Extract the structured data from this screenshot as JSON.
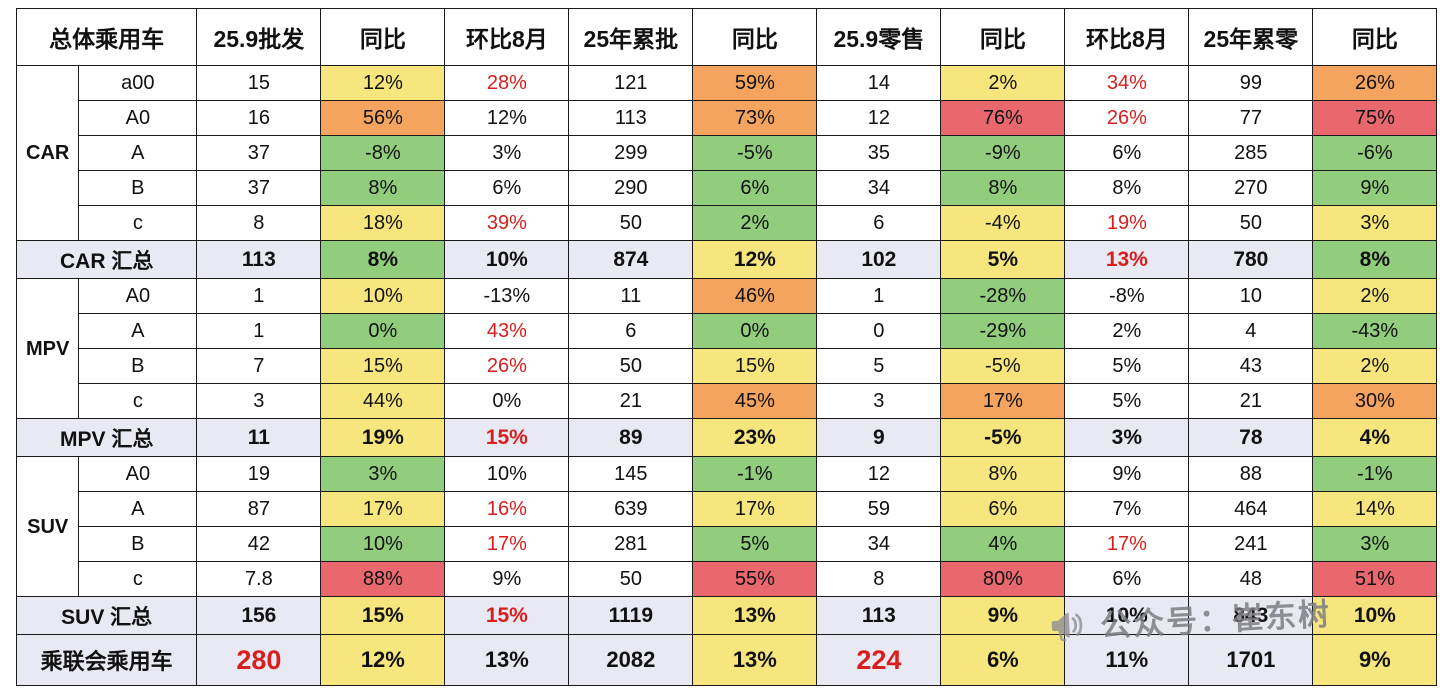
{
  "colors": {
    "w": "#ffffff",
    "y": "#f6e67d",
    "g": "#92cd7d",
    "o": "#f4a45e",
    "r": "#e9686e",
    "t": "#e8e9f3",
    "red_text": "#d81e1e"
  },
  "chart_data": {
    "type": "table",
    "title": "总体乘用车",
    "columns": [
      "总体乘用车",
      "25.9批发",
      "同比",
      "环比8月",
      "25年累批",
      "同比",
      "25.9零售",
      "同比",
      "环比8月",
      "25年累零",
      "同比"
    ],
    "sections": [
      {
        "group": "CAR",
        "rows": [
          {
            "label": "a00",
            "cells": [
              [
                "15",
                "w"
              ],
              [
                "12%",
                "y"
              ],
              [
                "28%",
                "w",
                "red"
              ],
              [
                "121",
                "w"
              ],
              [
                "59%",
                "o"
              ],
              [
                "14",
                "w"
              ],
              [
                "2%",
                "y"
              ],
              [
                "34%",
                "w",
                "red"
              ],
              [
                "99",
                "w"
              ],
              [
                "26%",
                "o"
              ]
            ]
          },
          {
            "label": "A0",
            "cells": [
              [
                "16",
                "w"
              ],
              [
                "56%",
                "o"
              ],
              [
                "12%",
                "w"
              ],
              [
                "113",
                "w"
              ],
              [
                "73%",
                "o"
              ],
              [
                "12",
                "w"
              ],
              [
                "76%",
                "r"
              ],
              [
                "26%",
                "w",
                "red"
              ],
              [
                "77",
                "w"
              ],
              [
                "75%",
                "r"
              ]
            ]
          },
          {
            "label": "A",
            "cells": [
              [
                "37",
                "w"
              ],
              [
                "-8%",
                "g"
              ],
              [
                "3%",
                "w"
              ],
              [
                "299",
                "w"
              ],
              [
                "-5%",
                "g"
              ],
              [
                "35",
                "w"
              ],
              [
                "-9%",
                "g"
              ],
              [
                "6%",
                "w"
              ],
              [
                "285",
                "w"
              ],
              [
                "-6%",
                "g"
              ]
            ]
          },
          {
            "label": "B",
            "cells": [
              [
                "37",
                "w"
              ],
              [
                "8%",
                "g"
              ],
              [
                "6%",
                "w"
              ],
              [
                "290",
                "w"
              ],
              [
                "6%",
                "g"
              ],
              [
                "34",
                "w"
              ],
              [
                "8%",
                "g"
              ],
              [
                "8%",
                "w"
              ],
              [
                "270",
                "w"
              ],
              [
                "9%",
                "g"
              ]
            ]
          },
          {
            "label": "c",
            "cells": [
              [
                "8",
                "w"
              ],
              [
                "18%",
                "y"
              ],
              [
                "39%",
                "w",
                "red"
              ],
              [
                "50",
                "w"
              ],
              [
                "2%",
                "g"
              ],
              [
                "6",
                "w"
              ],
              [
                "-4%",
                "y"
              ],
              [
                "19%",
                "w",
                "red"
              ],
              [
                "50",
                "w"
              ],
              [
                "3%",
                "y"
              ]
            ]
          }
        ],
        "total": {
          "label": "CAR 汇总",
          "cells": [
            [
              "113",
              "t"
            ],
            [
              "8%",
              "g"
            ],
            [
              "10%",
              "t"
            ],
            [
              "874",
              "t"
            ],
            [
              "12%",
              "y"
            ],
            [
              "102",
              "t"
            ],
            [
              "5%",
              "y"
            ],
            [
              "13%",
              "t",
              "red"
            ],
            [
              "780",
              "t"
            ],
            [
              "8%",
              "g"
            ]
          ]
        }
      },
      {
        "group": "MPV",
        "rows": [
          {
            "label": "A0",
            "cells": [
              [
                "1",
                "w"
              ],
              [
                "10%",
                "y"
              ],
              [
                "-13%",
                "w"
              ],
              [
                "11",
                "w"
              ],
              [
                "46%",
                "o"
              ],
              [
                "1",
                "w"
              ],
              [
                "-28%",
                "g"
              ],
              [
                "-8%",
                "w"
              ],
              [
                "10",
                "w"
              ],
              [
                "2%",
                "y"
              ]
            ]
          },
          {
            "label": "A",
            "cells": [
              [
                "1",
                "w"
              ],
              [
                "0%",
                "g"
              ],
              [
                "43%",
                "w",
                "red"
              ],
              [
                "6",
                "w"
              ],
              [
                "0%",
                "g"
              ],
              [
                "0",
                "w"
              ],
              [
                "-29%",
                "g"
              ],
              [
                "2%",
                "w"
              ],
              [
                "4",
                "w"
              ],
              [
                "-43%",
                "g"
              ]
            ]
          },
          {
            "label": "B",
            "cells": [
              [
                "7",
                "w"
              ],
              [
                "15%",
                "y"
              ],
              [
                "26%",
                "w",
                "red"
              ],
              [
                "50",
                "w"
              ],
              [
                "15%",
                "y"
              ],
              [
                "5",
                "w"
              ],
              [
                "-5%",
                "y"
              ],
              [
                "5%",
                "w"
              ],
              [
                "43",
                "w"
              ],
              [
                "2%",
                "y"
              ]
            ]
          },
          {
            "label": "c",
            "cells": [
              [
                "3",
                "w"
              ],
              [
                "44%",
                "y"
              ],
              [
                "0%",
                "w"
              ],
              [
                "21",
                "w"
              ],
              [
                "45%",
                "o"
              ],
              [
                "3",
                "w"
              ],
              [
                "17%",
                "o"
              ],
              [
                "5%",
                "w"
              ],
              [
                "21",
                "w"
              ],
              [
                "30%",
                "o"
              ]
            ]
          }
        ],
        "total": {
          "label": "MPV 汇总",
          "cells": [
            [
              "11",
              "t"
            ],
            [
              "19%",
              "y"
            ],
            [
              "15%",
              "t",
              "red"
            ],
            [
              "89",
              "t"
            ],
            [
              "23%",
              "y"
            ],
            [
              "9",
              "t"
            ],
            [
              "-5%",
              "y"
            ],
            [
              "3%",
              "t"
            ],
            [
              "78",
              "t"
            ],
            [
              "4%",
              "y"
            ]
          ]
        }
      },
      {
        "group": "SUV",
        "rows": [
          {
            "label": "A0",
            "cells": [
              [
                "19",
                "w"
              ],
              [
                "3%",
                "g"
              ],
              [
                "10%",
                "w"
              ],
              [
                "145",
                "w"
              ],
              [
                "-1%",
                "g"
              ],
              [
                "12",
                "w"
              ],
              [
                "8%",
                "y"
              ],
              [
                "9%",
                "w"
              ],
              [
                "88",
                "w"
              ],
              [
                "-1%",
                "g"
              ]
            ]
          },
          {
            "label": "A",
            "cells": [
              [
                "87",
                "w"
              ],
              [
                "17%",
                "y"
              ],
              [
                "16%",
                "w",
                "red"
              ],
              [
                "639",
                "w"
              ],
              [
                "17%",
                "y"
              ],
              [
                "59",
                "w"
              ],
              [
                "6%",
                "y"
              ],
              [
                "7%",
                "w"
              ],
              [
                "464",
                "w"
              ],
              [
                "14%",
                "y"
              ]
            ]
          },
          {
            "label": "B",
            "cells": [
              [
                "42",
                "w"
              ],
              [
                "10%",
                "g"
              ],
              [
                "17%",
                "w",
                "red"
              ],
              [
                "281",
                "w"
              ],
              [
                "5%",
                "g"
              ],
              [
                "34",
                "w"
              ],
              [
                "4%",
                "g"
              ],
              [
                "17%",
                "w",
                "red"
              ],
              [
                "241",
                "w"
              ],
              [
                "3%",
                "g"
              ]
            ]
          },
          {
            "label": "c",
            "cells": [
              [
                "7.8",
                "w"
              ],
              [
                "88%",
                "r"
              ],
              [
                "9%",
                "w"
              ],
              [
                "50",
                "w"
              ],
              [
                "55%",
                "r"
              ],
              [
                "8",
                "w"
              ],
              [
                "80%",
                "r"
              ],
              [
                "6%",
                "w"
              ],
              [
                "48",
                "w"
              ],
              [
                "51%",
                "r"
              ]
            ]
          }
        ],
        "total": {
          "label": "SUV 汇总",
          "cells": [
            [
              "156",
              "t"
            ],
            [
              "15%",
              "y"
            ],
            [
              "15%",
              "t",
              "red"
            ],
            [
              "1119",
              "t"
            ],
            [
              "13%",
              "y"
            ],
            [
              "113",
              "t"
            ],
            [
              "9%",
              "y"
            ],
            [
              "10%",
              "t"
            ],
            [
              "843",
              "t"
            ],
            [
              "10%",
              "y"
            ]
          ]
        }
      }
    ],
    "grand_total": {
      "label": "乘联会乘用车",
      "cells": [
        [
          "280",
          "t",
          "red"
        ],
        [
          "12%",
          "y"
        ],
        [
          "13%",
          "t"
        ],
        [
          "2082",
          "t"
        ],
        [
          "13%",
          "y"
        ],
        [
          "224",
          "t",
          "red"
        ],
        [
          "6%",
          "y"
        ],
        [
          "11%",
          "t"
        ],
        [
          "1701",
          "t"
        ],
        [
          "9%",
          "y"
        ]
      ]
    }
  },
  "watermark": {
    "text": "公众号：崔东树"
  }
}
